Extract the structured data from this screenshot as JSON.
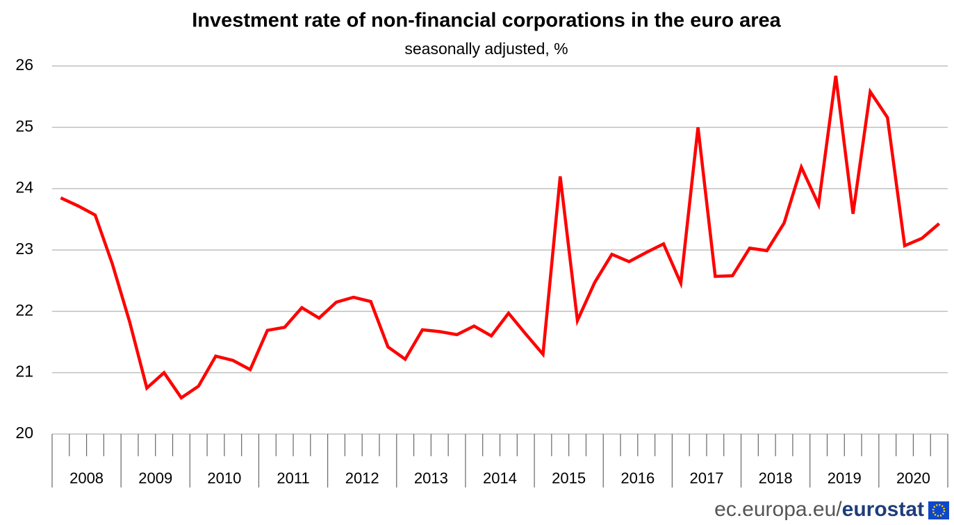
{
  "chart_data": {
    "type": "line",
    "title": "Investment rate of non-financial corporations in the euro area",
    "subtitle": "seasonally adjusted, %",
    "categories": [
      "2008",
      null,
      null,
      null,
      "2009",
      null,
      null,
      null,
      "2010",
      null,
      null,
      null,
      "2011",
      null,
      null,
      null,
      "2012",
      null,
      null,
      null,
      "2013",
      null,
      null,
      null,
      "2014",
      null,
      null,
      null,
      "2015",
      null,
      null,
      null,
      "2016",
      null,
      null,
      null,
      "2017",
      null,
      null,
      null,
      "2018",
      null,
      null,
      null,
      "2019",
      null,
      null,
      null,
      "2020",
      null,
      null,
      null
    ],
    "series": [
      {
        "name": "Investment rate",
        "color": "#ff0000",
        "values": [
          23.85,
          23.72,
          23.57,
          22.77,
          21.83,
          20.75,
          21.0,
          20.59,
          20.78,
          21.27,
          21.2,
          21.05,
          21.69,
          21.74,
          22.06,
          21.89,
          22.15,
          22.23,
          22.16,
          21.42,
          21.22,
          21.7,
          21.67,
          21.62,
          21.76,
          21.6,
          21.97,
          21.63,
          21.3,
          24.2,
          21.85,
          22.47,
          22.93,
          22.81,
          22.96,
          23.1,
          22.46,
          25.0,
          22.57,
          22.58,
          23.03,
          22.99,
          23.44,
          24.35,
          23.74,
          25.84,
          23.59,
          25.58,
          25.16,
          23.07,
          23.19,
          23.43
        ]
      }
    ],
    "ylim": [
      20,
      26
    ],
    "yticks": [
      20,
      21,
      22,
      23,
      24,
      25,
      26
    ],
    "grid": true,
    "source": {
      "site": "ec.europa.eu/",
      "brand": "eurostat"
    }
  }
}
